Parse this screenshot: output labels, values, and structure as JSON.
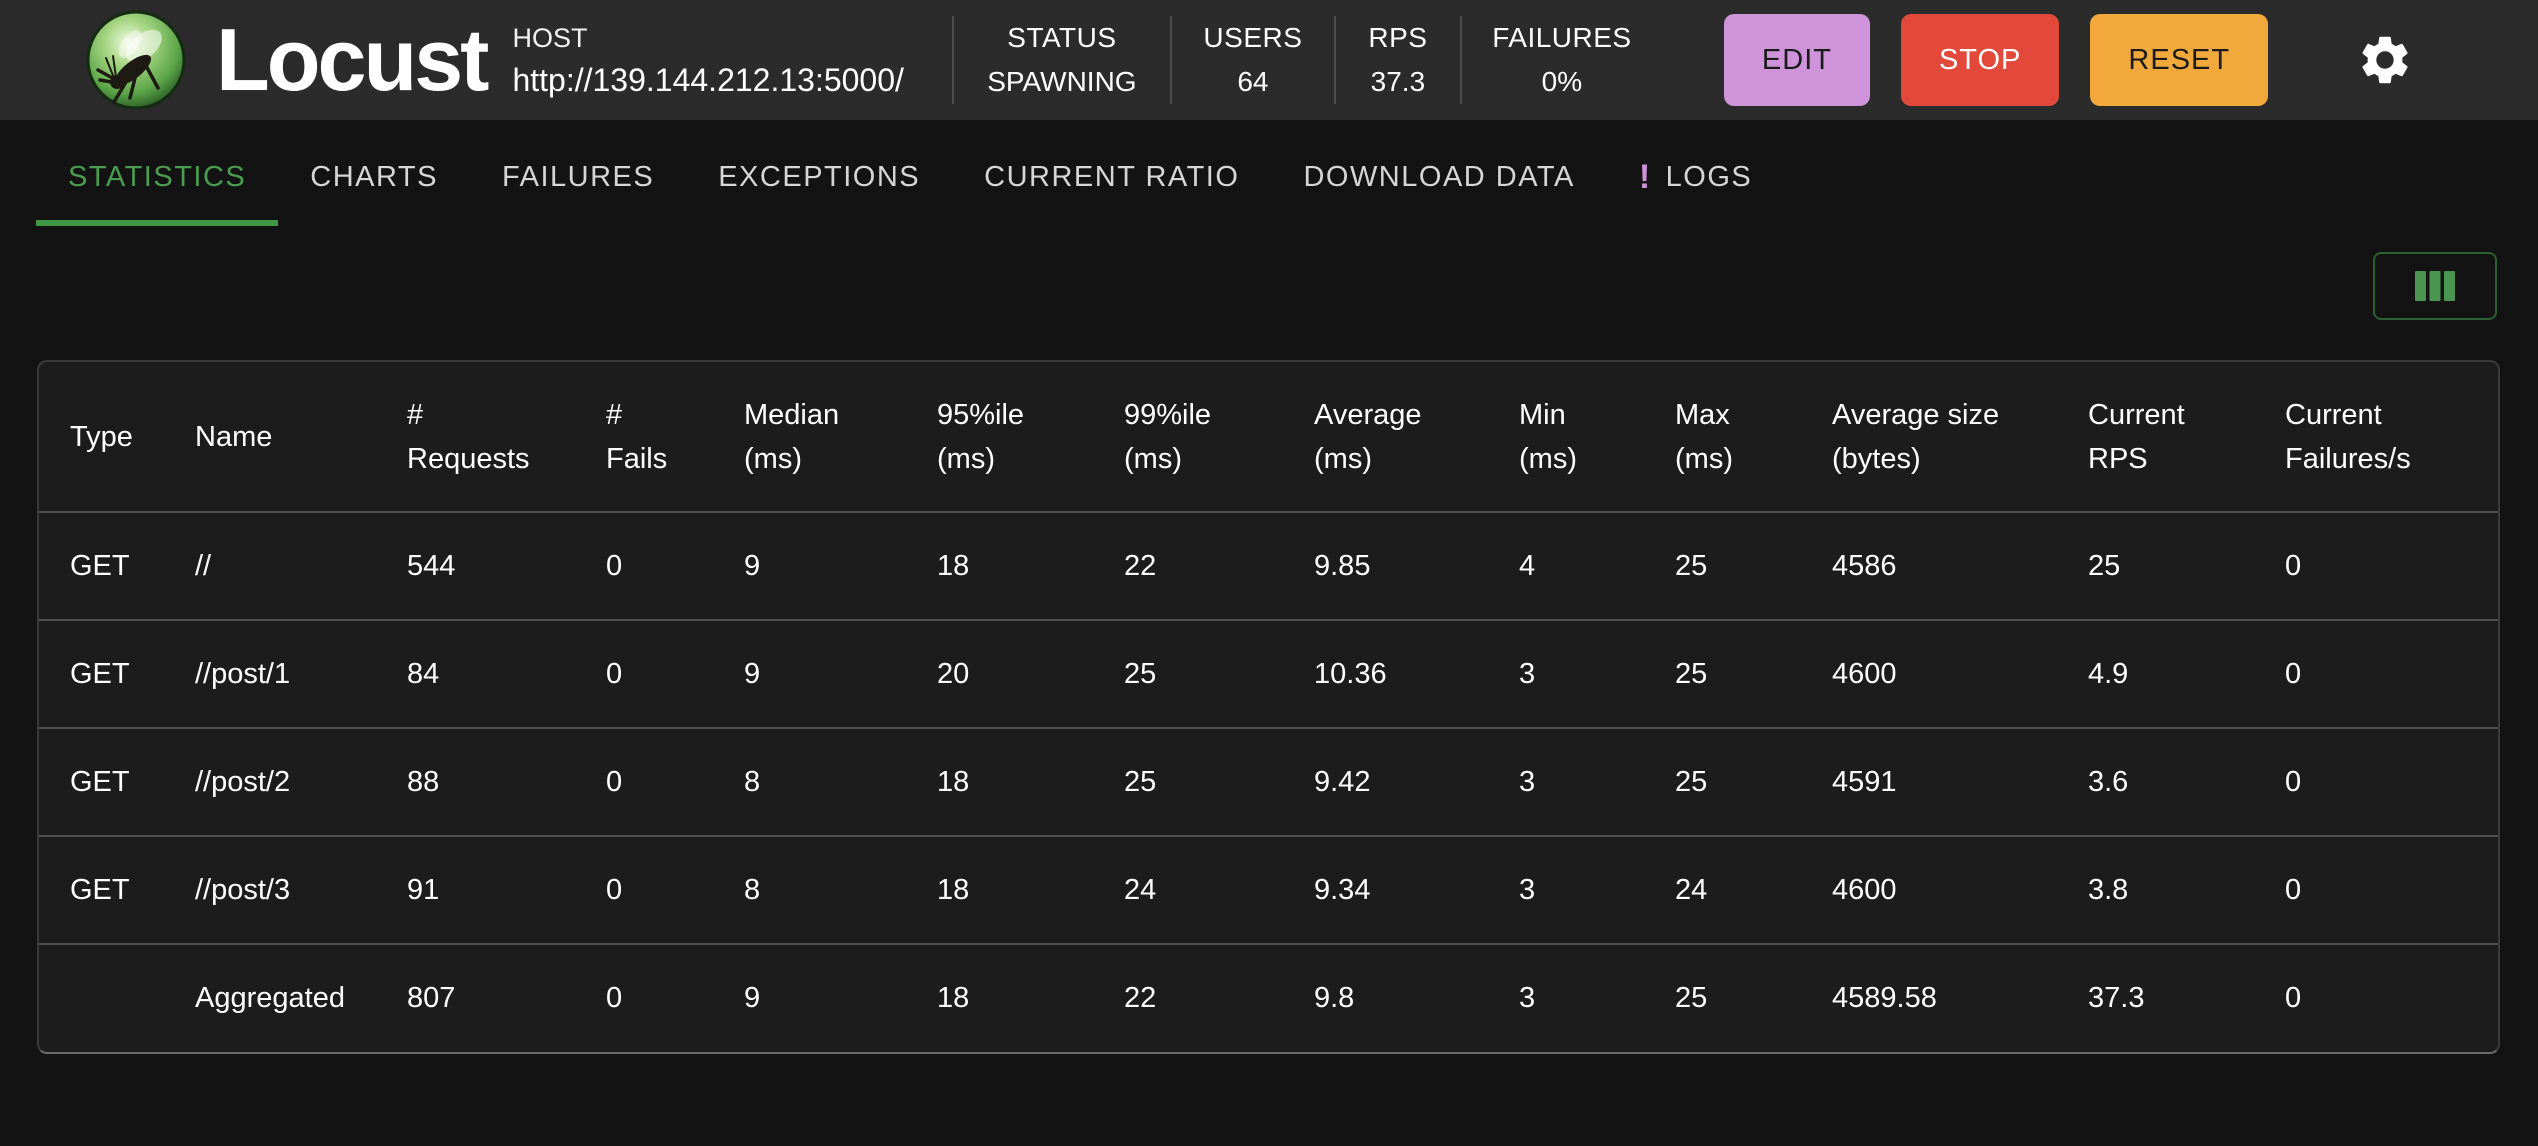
{
  "header": {
    "brand": "Locust",
    "host_label": "HOST",
    "host_value": "http://139.144.212.13:5000/",
    "stats": [
      {
        "label": "STATUS",
        "value": "SPAWNING"
      },
      {
        "label": "USERS",
        "value": "64"
      },
      {
        "label": "RPS",
        "value": "37.3"
      },
      {
        "label": "FAILURES",
        "value": "0%"
      }
    ],
    "buttons": {
      "edit": "EDIT",
      "stop": "STOP",
      "reset": "RESET"
    }
  },
  "tabs": [
    {
      "label": "STATISTICS",
      "active": true
    },
    {
      "label": "CHARTS"
    },
    {
      "label": "FAILURES"
    },
    {
      "label": "EXCEPTIONS"
    },
    {
      "label": "CURRENT RATIO"
    },
    {
      "label": "DOWNLOAD DATA"
    },
    {
      "label": "LOGS",
      "badge": "!"
    }
  ],
  "table": {
    "columns": [
      "Type",
      "Name",
      "#\nRequests",
      "#\nFails",
      "Median\n(ms)",
      "95%ile\n(ms)",
      "99%ile\n(ms)",
      "Average\n(ms)",
      "Min\n(ms)",
      "Max\n(ms)",
      "Average size\n(bytes)",
      "Current\nRPS",
      "Current\nFailures/s"
    ],
    "rows": [
      [
        "GET",
        "//",
        "544",
        "0",
        "9",
        "18",
        "22",
        "9.85",
        "4",
        "25",
        "4586",
        "25",
        "0"
      ],
      [
        "GET",
        "//post/1",
        "84",
        "0",
        "9",
        "20",
        "25",
        "10.36",
        "3",
        "25",
        "4600",
        "4.9",
        "0"
      ],
      [
        "GET",
        "//post/2",
        "88",
        "0",
        "8",
        "18",
        "25",
        "9.42",
        "3",
        "25",
        "4591",
        "3.6",
        "0"
      ],
      [
        "GET",
        "//post/3",
        "91",
        "0",
        "8",
        "18",
        "24",
        "9.34",
        "3",
        "24",
        "4600",
        "3.8",
        "0"
      ],
      [
        "",
        "Aggregated",
        "807",
        "0",
        "9",
        "18",
        "22",
        "9.8",
        "3",
        "25",
        "4589.58",
        "37.3",
        "0"
      ]
    ]
  },
  "icons": {
    "logo": "locust-logo",
    "settings": "gear-icon",
    "logs_alert": "logs-alert-icon",
    "columns": "view-columns-icon"
  },
  "colors": {
    "accent_green": "#4a9c50",
    "edit_button": "#ce93d8",
    "stop_button": "#e2493b",
    "reset_button": "#f2a93b",
    "logs_badge": "#ce93d8",
    "appbar_bg": "#2b2b2b",
    "page_bg": "#131313",
    "table_bg": "#1c1c1c"
  }
}
